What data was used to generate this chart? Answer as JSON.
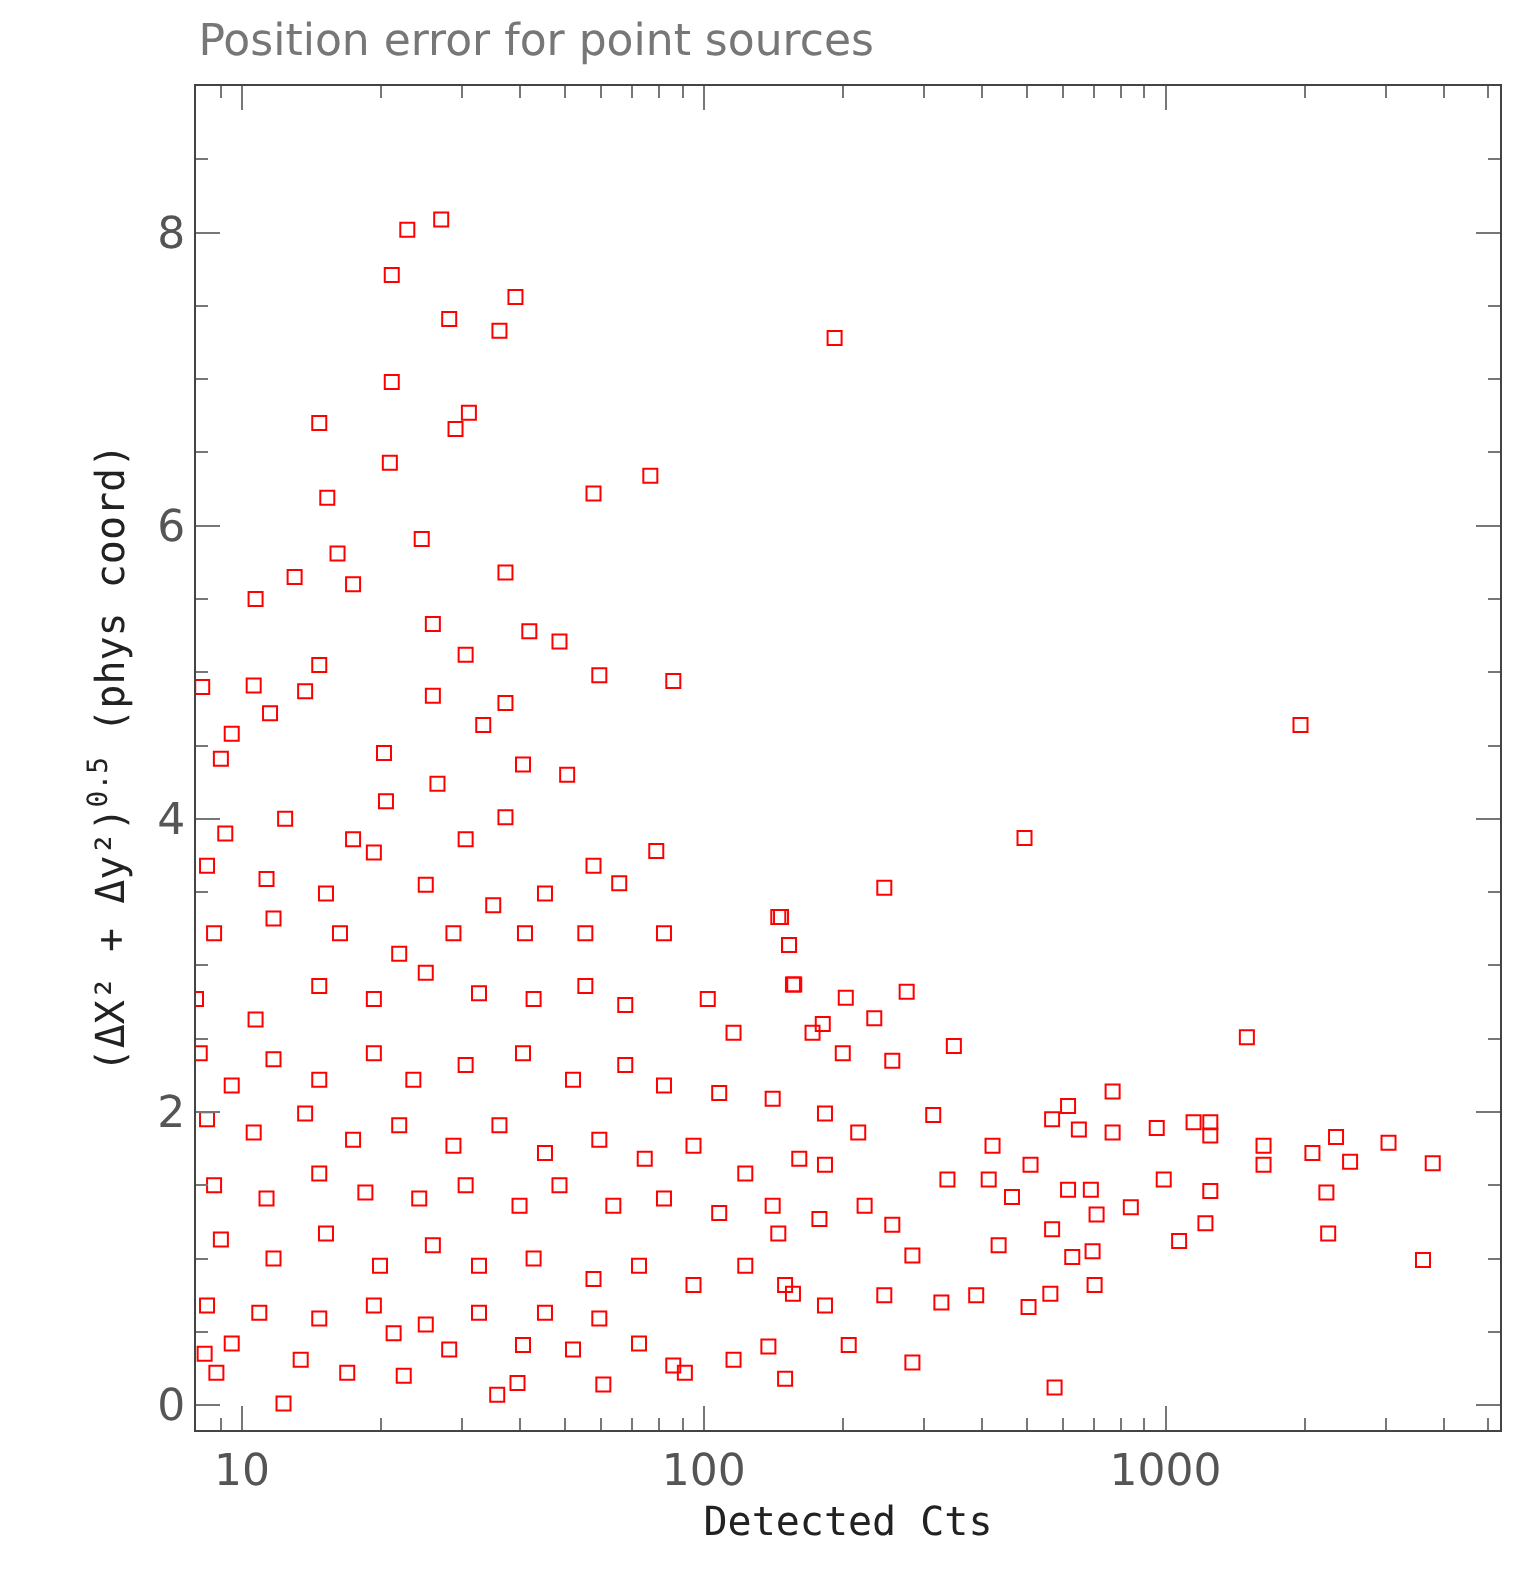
{
  "chart_data": {
    "type": "scatter",
    "title": "Position error for point sources",
    "xlabel": "Detected Cts",
    "ylabel": "(ΔX² + Δy²)$^{0.5}$ (phys coord)",
    "log": "x",
    "xlim": [
      7.95,
      5300
    ],
    "xticks": [
      10,
      100,
      1000
    ],
    "ylim": [
      -0.17,
      9.0
    ],
    "yticks": [
      0,
      2,
      4,
      6,
      8
    ],
    "marker": "square",
    "series": [
      {
        "color": "#ff0000",
        "x": [
          27,
          22.8,
          21.1,
          39.1,
          28.1,
          36.1,
          192,
          21.1,
          14.7,
          31.0,
          29,
          20.9,
          76.6,
          57.7,
          15.3,
          24.5,
          16.1,
          37.2,
          13.0,
          10.7,
          17.4,
          25.9,
          41.9,
          48.7,
          30.5,
          59.4,
          85.9,
          8.2,
          14.7,
          25.9,
          37.2,
          13.7,
          33.3,
          10.6,
          11.5,
          9.5,
          20.3,
          40.6,
          50.6,
          26.5,
          9.0,
          20.5,
          37.2,
          78.9,
          57.7,
          65.6,
          145,
          153,
          156,
          1960,
          495,
          246,
          147,
          153,
          157,
          1500,
          203,
          275,
          234,
          348,
          181,
          200,
          256,
          768,
          615,
          1250,
          1150,
          1250,
          957,
          2340,
          3040,
          3790,
          2510,
          2080,
          1630,
          1630,
          2230,
          2250,
          3610,
          1220,
          1070,
          1250,
          991,
          841,
          709,
          695,
          702,
          575,
          505,
          563,
          283,
          206,
          150,
          138,
          327,
          389,
          510,
          615,
          689,
          465,
          414,
          568,
          628,
          435,
          768,
          568,
          649,
          422,
          337,
          314,
          216,
          183,
          223,
          256,
          283,
          246,
          183,
          150,
          145,
          12.3,
          8.8,
          8.3,
          16.9,
          22.4,
          35.7,
          39.5,
          60.6,
          91,
          116,
          9.5,
          13.4,
          21.3,
          28.1,
          40.6,
          52.1,
          72.4,
          85.9,
          9.2,
          12.4,
          17.4,
          8.4,
          11.3,
          15.2,
          19.3,
          25,
          30.5,
          45.3,
          8.7,
          11.7,
          16.3,
          21.9,
          28.7,
          35,
          41,
          55.4,
          82,
          7.95,
          10.7,
          14.7,
          19.3,
          25,
          32.6,
          42.8,
          55.4,
          67.6,
          102,
          116,
          172,
          8.1,
          9.5,
          11.7,
          14.7,
          19.3,
          23.5,
          30.5,
          40.6,
          52.1,
          67.6,
          82,
          108,
          141,
          183,
          8.4,
          10.6,
          13.7,
          17.4,
          21.9,
          28.7,
          36.1,
          45.3,
          59.4,
          74.5,
          95,
          123,
          161,
          8.7,
          11.3,
          14.7,
          18.5,
          24.2,
          30.5,
          39.9,
          48.7,
          63.7,
          82,
          108,
          141,
          178,
          9.0,
          11.7,
          15.2,
          19.9,
          25.9,
          32.6,
          42.8,
          57.7,
          72.4,
          95,
          123,
          156,
          8.4,
          10.9,
          14.7,
          19.3,
          25,
          32.6,
          45.3,
          59.4
        ],
        "values": [
          8.09,
          8.02,
          7.71,
          7.56,
          7.41,
          7.33,
          7.28,
          6.98,
          6.7,
          6.77,
          6.66,
          6.43,
          6.34,
          6.22,
          6.19,
          5.91,
          5.81,
          5.68,
          5.65,
          5.5,
          5.6,
          5.33,
          5.28,
          5.21,
          5.12,
          4.98,
          4.94,
          4.9,
          5.05,
          4.84,
          4.79,
          4.87,
          4.64,
          4.91,
          4.72,
          4.58,
          4.45,
          4.37,
          4.3,
          4.24,
          4.41,
          4.12,
          4.01,
          3.78,
          3.68,
          3.56,
          3.33,
          3.14,
          2.87,
          4.64,
          3.87,
          3.53,
          3.33,
          3.14,
          2.87,
          2.51,
          2.78,
          2.82,
          2.64,
          2.45,
          2.6,
          2.4,
          2.35,
          2.14,
          2.04,
          1.84,
          1.93,
          1.93,
          1.89,
          1.83,
          1.79,
          1.65,
          1.66,
          1.72,
          1.77,
          1.64,
          1.45,
          1.17,
          0.99,
          1.24,
          1.12,
          1.46,
          1.54,
          1.35,
          1.3,
          1.05,
          0.82,
          0.12,
          0.67,
          0.76,
          0.29,
          0.41,
          0.18,
          0.4,
          0.7,
          0.75,
          1.64,
          1.47,
          1.47,
          1.42,
          1.54,
          1.2,
          1.01,
          1.09,
          1.86,
          1.95,
          1.88,
          1.77,
          1.54,
          1.98,
          1.86,
          1.64,
          1.36,
          1.23,
          1.02,
          0.75,
          0.68,
          0.82,
          1.17,
          0.01,
          0.22,
          0.35,
          0.22,
          0.2,
          0.07,
          0.15,
          0.14,
          0.22,
          0.31,
          0.42,
          0.31,
          0.49,
          0.38,
          0.41,
          0.38,
          0.42,
          0.27,
          3.9,
          4.0,
          3.86,
          3.68,
          3.59,
          3.49,
          3.77,
          3.55,
          3.86,
          3.49,
          3.22,
          3.32,
          3.22,
          3.08,
          3.22,
          3.41,
          3.22,
          3.22,
          3.22,
          2.77,
          2.63,
          2.86,
          2.77,
          2.95,
          2.81,
          2.77,
          2.86,
          2.73,
          2.77,
          2.54,
          2.54,
          2.4,
          2.18,
          2.36,
          2.22,
          2.4,
          2.22,
          2.32,
          2.4,
          2.22,
          2.32,
          2.18,
          2.13,
          2.09,
          1.99,
          1.95,
          1.86,
          1.99,
          1.81,
          1.91,
          1.77,
          1.91,
          1.72,
          1.81,
          1.68,
          1.77,
          1.58,
          1.68,
          1.5,
          1.41,
          1.58,
          1.45,
          1.41,
          1.5,
          1.36,
          1.5,
          1.36,
          1.41,
          1.31,
          1.36,
          1.27,
          1.13,
          1.0,
          1.17,
          0.95,
          1.09,
          0.95,
          1.0,
          0.86,
          0.95,
          0.82,
          0.95,
          0.76,
          0.68,
          0.63,
          0.59,
          0.68,
          0.55,
          0.63,
          0.63,
          0.59
        ]
      }
    ]
  }
}
